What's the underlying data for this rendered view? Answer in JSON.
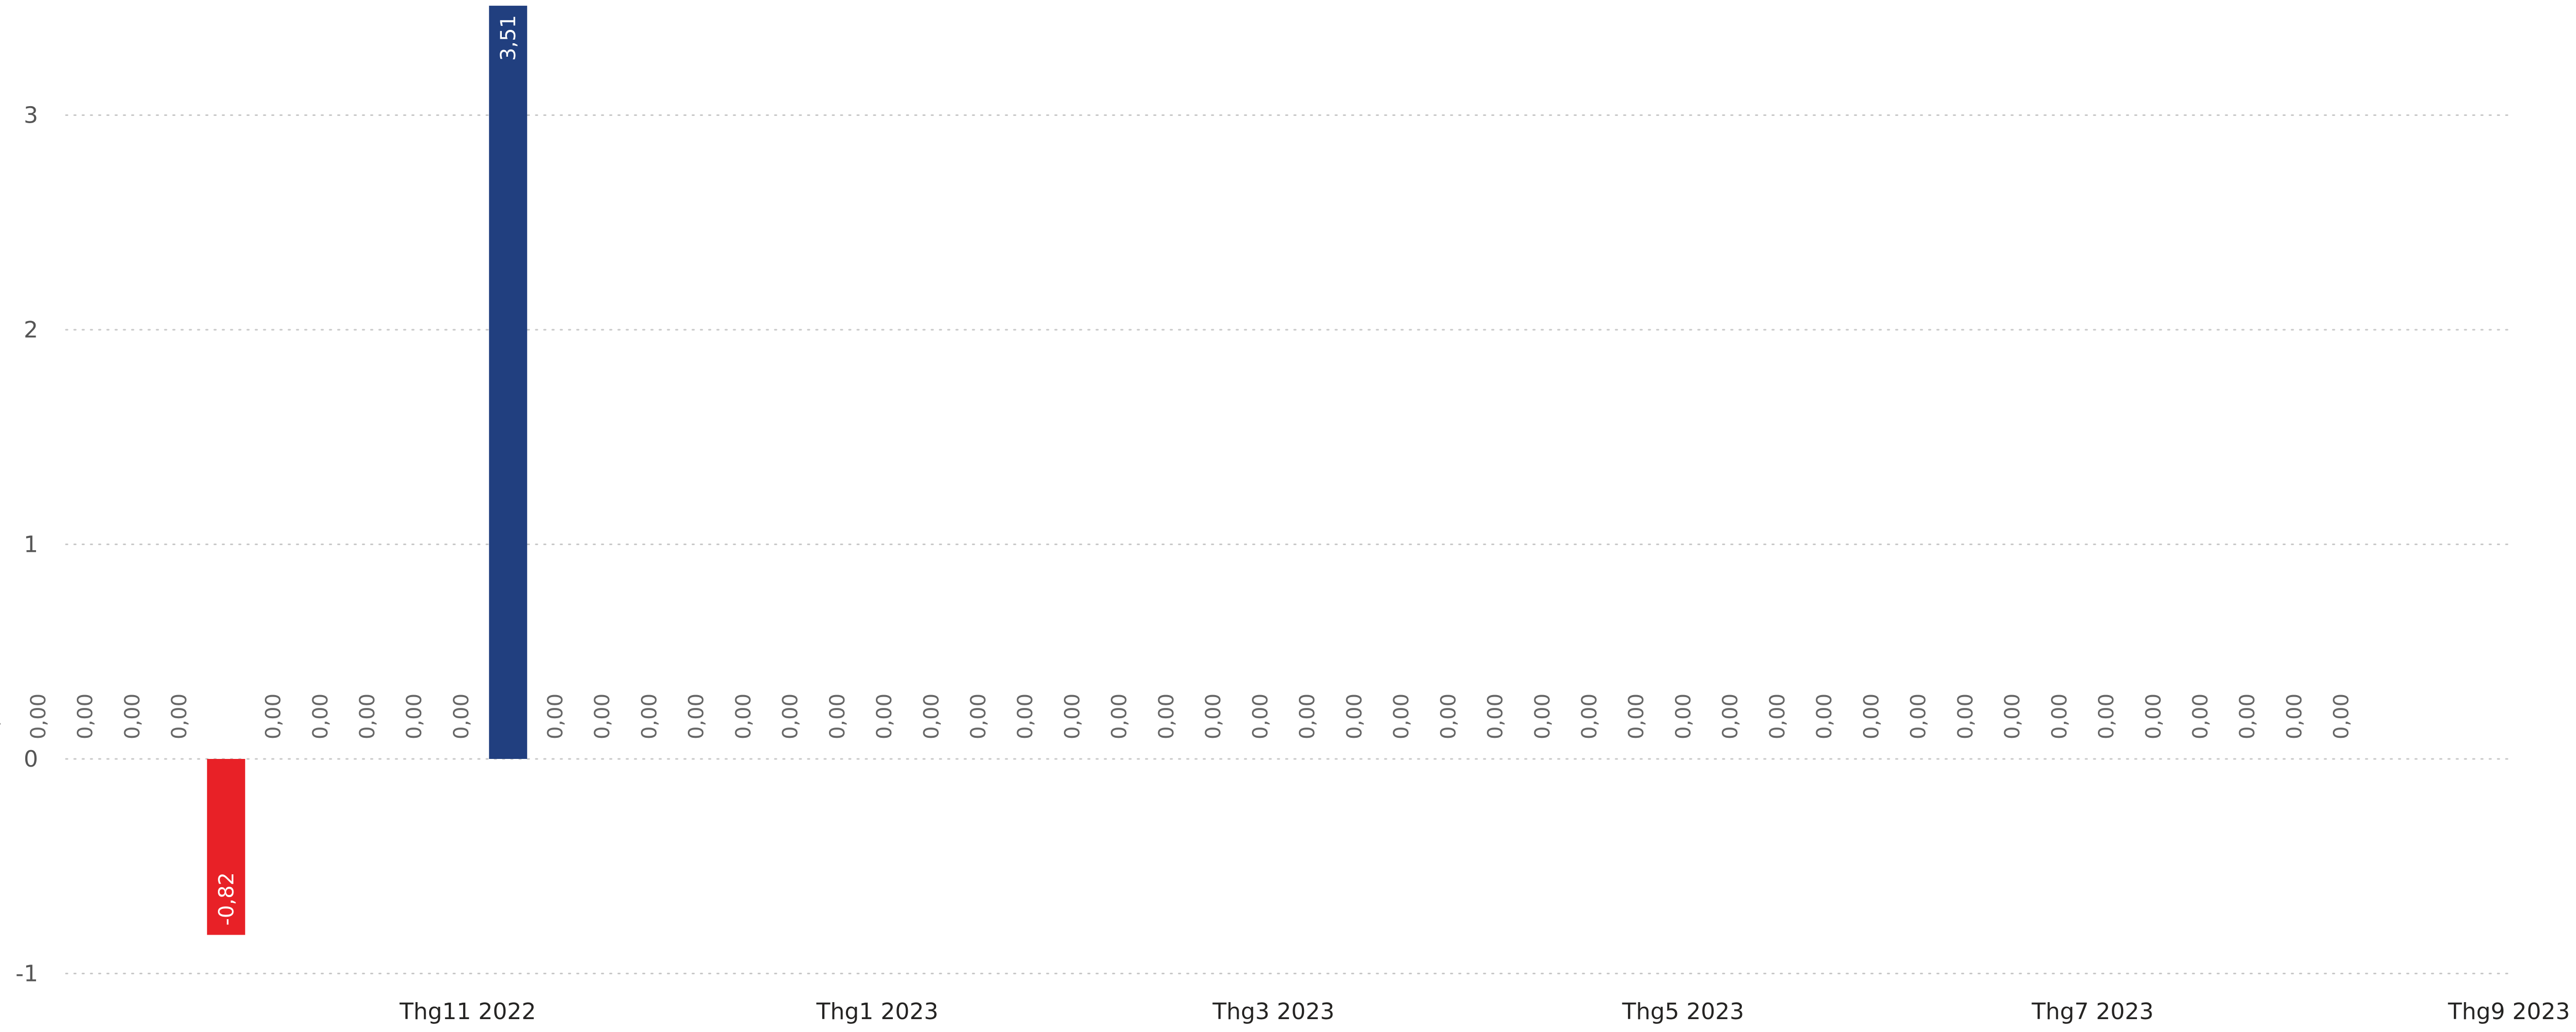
{
  "chart_data": {
    "type": "bar",
    "title": "",
    "xlabel": "",
    "ylabel": "",
    "ylim": [
      -1,
      3.5
    ],
    "yticks": [
      -1,
      0,
      1,
      2,
      3
    ],
    "ytick_labels": [
      "-1",
      "0",
      "1",
      "2",
      "3"
    ],
    "grid": true,
    "legend": "none",
    "x_start": "2022-07",
    "x_ticks": [
      {
        "month": "2022-11",
        "label": "Thg11 2022"
      },
      {
        "month": "2023-01",
        "label": "Thg1 2023"
      },
      {
        "month": "2023-03",
        "label": "Thg3 2023"
      },
      {
        "month": "2023-05",
        "label": "Thg5 2023"
      },
      {
        "month": "2023-07",
        "label": "Thg7 2023"
      },
      {
        "month": "2023-09",
        "label": "Thg9 2023"
      }
    ],
    "categories": [
      "2022-08-01",
      "2022-08-08",
      "2022-08-15",
      "2022-08-22",
      "2022-08-29",
      "2022-09-05",
      "2022-09-12",
      "2022-09-19",
      "2022-09-26",
      "2022-10-03",
      "2022-10-10",
      "2022-10-17",
      "2022-10-24",
      "2022-10-31",
      "2022-11-07",
      "2022-11-14",
      "2022-11-21",
      "2022-11-28",
      "2022-12-05",
      "2022-12-12",
      "2022-12-19",
      "2022-12-26",
      "2023-01-02",
      "2023-01-09",
      "2023-01-16",
      "2023-01-23",
      "2023-01-30",
      "2023-02-06",
      "2023-02-13",
      "2023-02-20",
      "2023-02-27",
      "2023-03-06",
      "2023-03-13",
      "2023-03-20",
      "2023-03-27",
      "2023-04-03",
      "2023-04-10",
      "2023-04-17",
      "2023-04-24",
      "2023-05-01",
      "2023-05-08",
      "2023-05-15",
      "2023-05-22",
      "2023-05-29",
      "2023-06-05",
      "2023-06-12",
      "2023-06-19",
      "2023-06-26",
      "2023-07-03",
      "2023-07-10",
      "2023-07-17",
      "2023-07-24",
      "2023-07-31",
      "2023-08-07"
    ],
    "values": [
      0,
      0,
      0,
      0,
      0,
      0,
      0,
      0,
      -0.82,
      0,
      0,
      0,
      0,
      0,
      3.51,
      0,
      0,
      0,
      0,
      0,
      0,
      0,
      0,
      0,
      0,
      0,
      0,
      0,
      0,
      0,
      0,
      0,
      0,
      0,
      0,
      0,
      0,
      0,
      0,
      0,
      0,
      0,
      0,
      0,
      0,
      0,
      0,
      0,
      0,
      0,
      0,
      0,
      0,
      0
    ],
    "data_labels": [
      "0,00",
      "0,00",
      "0,00",
      "0,00",
      "0,00",
      "0,00",
      "0,00",
      "0,00",
      "-0,82",
      "0,00",
      "0,00",
      "0,00",
      "0,00",
      "0,00",
      "3,51",
      "0,00",
      "0,00",
      "0,00",
      "0,00",
      "0,00",
      "0,00",
      "0,00",
      "0,00",
      "0,00",
      "0,00",
      "0,00",
      "0,00",
      "0,00",
      "0,00",
      "0,00",
      "0,00",
      "0,00",
      "0,00",
      "0,00",
      "0,00",
      "0,00",
      "0,00",
      "0,00",
      "0,00",
      "0,00",
      "0,00",
      "0,00",
      "0,00",
      "0,00",
      "0,00",
      "0,00",
      "0,00",
      "0,00",
      "0,00",
      "0,00",
      "0,00",
      "0,00",
      "0,00",
      "0,00"
    ],
    "colors": {
      "positive": "#213F7F",
      "negative": "#E82127",
      "grid": "#C8C8C8",
      "axis_text": "#555555",
      "label_zero": "#666666",
      "label_inside": "#FFFFFF"
    }
  }
}
